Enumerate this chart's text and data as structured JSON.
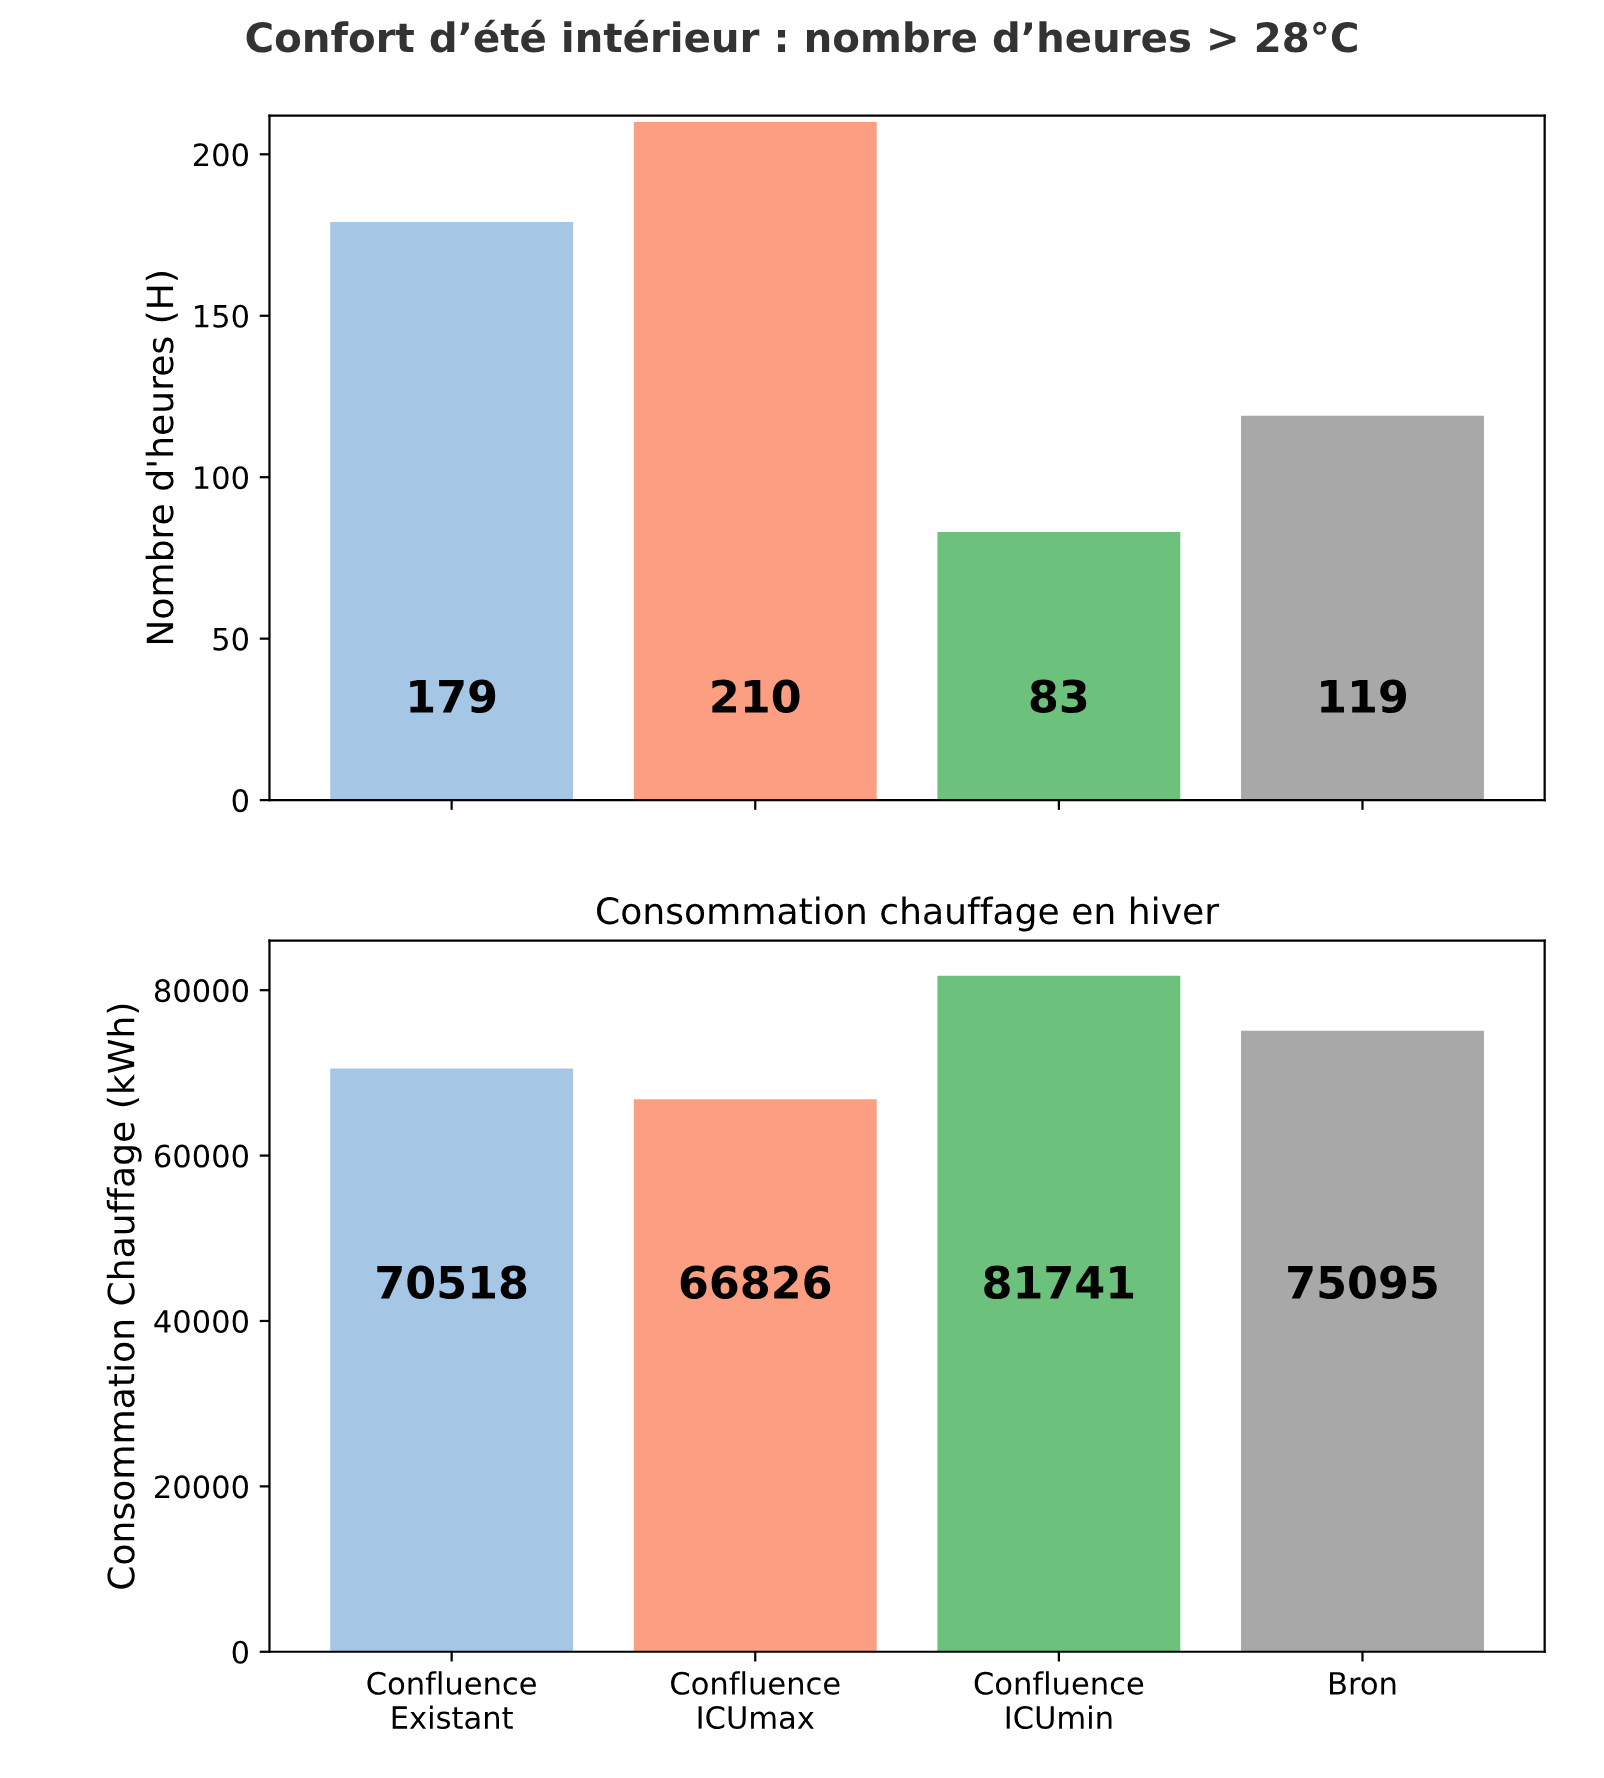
{
  "chart_data": [
    {
      "type": "bar",
      "title": "Confort d’été intérieur : nombre d’heures > 28°C",
      "ylabel": "Nombre d'heures (H)",
      "categories": [
        null,
        null,
        null,
        null
      ],
      "values": [
        179,
        210,
        83,
        119
      ],
      "colors": [
        "#a6c6e6",
        "#fc9e82",
        "#6cc17c",
        "#a8a8a8"
      ],
      "ylim": [
        0,
        212
      ],
      "yticks": [
        0,
        50,
        100,
        150,
        200
      ],
      "data_labels": true,
      "grid": false,
      "legend": false
    },
    {
      "type": "bar",
      "title": "Consommation chauffage en hiver",
      "ylabel": "Consommation Chauffage (kWh)",
      "categories": [
        "Confluence\nExistant",
        "Confluence\nICUmax",
        "Confluence\nICUmin",
        "Bron"
      ],
      "values": [
        70518,
        66826,
        81741,
        75095
      ],
      "colors": [
        "#a6c6e6",
        "#fc9e82",
        "#6cc17c",
        "#a8a8a8"
      ],
      "ylim": [
        0,
        86000
      ],
      "yticks": [
        0,
        20000,
        40000,
        60000,
        80000
      ],
      "data_labels": true,
      "grid": false,
      "legend": false
    }
  ]
}
